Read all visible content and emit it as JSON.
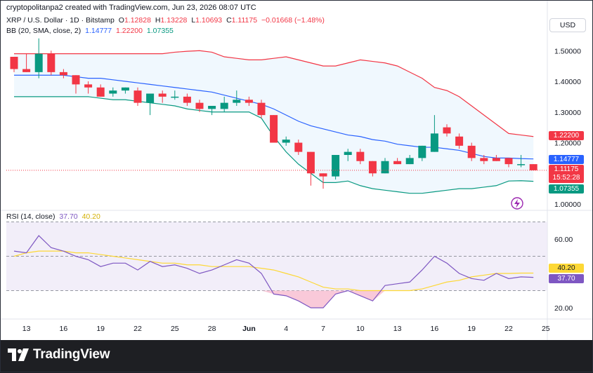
{
  "header": {
    "text": "cryptopolitanpa2 created with TradingView.com, Jun 23, 2026 08:07 UTC"
  },
  "symbol": {
    "title": "XRP / U.S. Dollar · 1D · Bitstamp",
    "open_label": "O",
    "open": "1.12828",
    "high_label": "H",
    "high": "1.13228",
    "low_label": "L",
    "low": "1.10693",
    "close_label": "C",
    "close": "1.11175",
    "change": "−0.01668 (−1.48%)"
  },
  "bb": {
    "label": "BB (20, SMA, close, 2)",
    "basis": "1.14777",
    "upper": "1.22200",
    "lower": "1.07355"
  },
  "rsi": {
    "label": "RSI (14, close)",
    "rsi_value": "37.70",
    "ma_value": "40.20"
  },
  "currency_button": "USD",
  "price_tags": {
    "upper": "1.22200",
    "basis": "1.14777",
    "last": "1.11175",
    "countdown": "15:52:28",
    "lower": "1.07355"
  },
  "colors": {
    "up": "#089981",
    "down": "#f23645",
    "bb_upper": "#f23645",
    "bb_basis": "#2962ff",
    "bb_lower": "#089981",
    "rsi": "#7e57c2",
    "rsi_ma": "#fdd835",
    "band_fill": "#e3f2fd",
    "rsi_fill": "#ede7f6"
  },
  "brand": {
    "name": "TradingView"
  },
  "chart_data": {
    "type": "candlestick",
    "y_ticks": [
      "1.50000",
      "1.40000",
      "1.30000",
      "1.20000",
      "1.00000"
    ],
    "x_ticks": [
      {
        "label": "13",
        "idx": 1
      },
      {
        "label": "16",
        "idx": 4
      },
      {
        "label": "19",
        "idx": 7
      },
      {
        "label": "22",
        "idx": 10
      },
      {
        "label": "25",
        "idx": 13
      },
      {
        "label": "28",
        "idx": 16
      },
      {
        "label": "Jun",
        "idx": 19
      },
      {
        "label": "4",
        "idx": 22
      },
      {
        "label": "7",
        "idx": 25
      },
      {
        "label": "10",
        "idx": 28
      },
      {
        "label": "13",
        "idx": 31
      },
      {
        "label": "16",
        "idx": 34
      },
      {
        "label": "19",
        "idx": 37
      },
      {
        "label": "22",
        "idx": 40
      },
      {
        "label": "25",
        "idx": 43
      }
    ],
    "candles": [
      [
        1.48,
        1.48,
        1.43,
        1.44
      ],
      [
        1.44,
        1.49,
        1.43,
        1.43
      ],
      [
        1.43,
        1.54,
        1.41,
        1.49
      ],
      [
        1.49,
        1.5,
        1.42,
        1.43
      ],
      [
        1.43,
        1.44,
        1.41,
        1.42
      ],
      [
        1.42,
        1.42,
        1.36,
        1.39
      ],
      [
        1.39,
        1.4,
        1.36,
        1.38
      ],
      [
        1.38,
        1.39,
        1.35,
        1.35
      ],
      [
        1.36,
        1.38,
        1.35,
        1.37
      ],
      [
        1.37,
        1.38,
        1.36,
        1.38
      ],
      [
        1.37,
        1.38,
        1.32,
        1.33
      ],
      [
        1.33,
        1.36,
        1.29,
        1.36
      ],
      [
        1.36,
        1.37,
        1.33,
        1.35
      ],
      [
        1.35,
        1.37,
        1.34,
        1.35
      ],
      [
        1.35,
        1.36,
        1.32,
        1.33
      ],
      [
        1.33,
        1.34,
        1.3,
        1.31
      ],
      [
        1.31,
        1.32,
        1.29,
        1.32
      ],
      [
        1.31,
        1.35,
        1.3,
        1.33
      ],
      [
        1.33,
        1.37,
        1.32,
        1.34
      ],
      [
        1.34,
        1.35,
        1.32,
        1.33
      ],
      [
        1.33,
        1.34,
        1.28,
        1.29
      ],
      [
        1.29,
        1.29,
        1.2,
        1.2
      ],
      [
        1.2,
        1.22,
        1.19,
        1.21
      ],
      [
        1.2,
        1.21,
        1.16,
        1.17
      ],
      [
        1.17,
        1.17,
        1.06,
        1.1
      ],
      [
        1.1,
        1.1,
        1.05,
        1.09
      ],
      [
        1.09,
        1.16,
        1.08,
        1.16
      ],
      [
        1.16,
        1.18,
        1.14,
        1.17
      ],
      [
        1.17,
        1.18,
        1.13,
        1.14
      ],
      [
        1.14,
        1.14,
        1.09,
        1.1
      ],
      [
        1.1,
        1.15,
        1.1,
        1.14
      ],
      [
        1.14,
        1.15,
        1.13,
        1.13
      ],
      [
        1.13,
        1.16,
        1.13,
        1.15
      ],
      [
        1.15,
        1.19,
        1.14,
        1.19
      ],
      [
        1.17,
        1.29,
        1.17,
        1.23
      ],
      [
        1.25,
        1.26,
        1.22,
        1.23
      ],
      [
        1.22,
        1.23,
        1.18,
        1.19
      ],
      [
        1.19,
        1.2,
        1.14,
        1.15
      ],
      [
        1.15,
        1.16,
        1.13,
        1.14
      ],
      [
        1.15,
        1.16,
        1.14,
        1.14
      ],
      [
        1.15,
        1.15,
        1.12,
        1.13
      ],
      [
        1.13,
        1.16,
        1.12,
        1.13
      ],
      [
        1.13,
        1.13,
        1.11,
        1.11
      ]
    ],
    "bb_upper": [
      1.49,
      1.49,
      1.49,
      1.49,
      1.49,
      1.49,
      1.49,
      1.49,
      1.49,
      1.49,
      1.49,
      1.49,
      1.49,
      1.495,
      1.498,
      1.5,
      1.495,
      1.48,
      1.475,
      1.47,
      1.47,
      1.475,
      1.48,
      1.47,
      1.46,
      1.45,
      1.45,
      1.46,
      1.47,
      1.465,
      1.46,
      1.45,
      1.43,
      1.41,
      1.38,
      1.37,
      1.35,
      1.32,
      1.29,
      1.26,
      1.23,
      1.225,
      1.22
    ],
    "bb_basis": [
      1.42,
      1.42,
      1.42,
      1.42,
      1.42,
      1.415,
      1.41,
      1.41,
      1.405,
      1.4,
      1.395,
      1.39,
      1.385,
      1.38,
      1.375,
      1.37,
      1.365,
      1.355,
      1.345,
      1.335,
      1.325,
      1.31,
      1.29,
      1.27,
      1.255,
      1.245,
      1.235,
      1.225,
      1.22,
      1.21,
      1.205,
      1.195,
      1.19,
      1.185,
      1.185,
      1.18,
      1.175,
      1.165,
      1.155,
      1.15,
      1.15,
      1.148,
      1.147
    ],
    "bb_lower": [
      1.35,
      1.35,
      1.35,
      1.35,
      1.35,
      1.35,
      1.35,
      1.345,
      1.34,
      1.34,
      1.335,
      1.33,
      1.325,
      1.32,
      1.31,
      1.305,
      1.3,
      1.3,
      1.3,
      1.3,
      1.28,
      1.22,
      1.17,
      1.13,
      1.1,
      1.07,
      1.07,
      1.075,
      1.06,
      1.05,
      1.045,
      1.04,
      1.035,
      1.035,
      1.04,
      1.045,
      1.05,
      1.05,
      1.055,
      1.06,
      1.075,
      1.076,
      1.074
    ],
    "rsi": [
      53,
      52,
      62,
      55,
      53,
      50,
      48,
      44,
      46,
      46,
      42,
      47,
      44,
      45,
      43,
      40,
      42,
      45,
      48,
      46,
      40,
      28,
      27,
      24,
      20,
      20,
      28,
      30,
      27,
      24,
      33,
      34,
      35,
      42,
      50,
      46,
      40,
      37,
      36,
      40,
      37,
      38,
      37.7
    ],
    "rsi_ma": [
      50,
      52,
      53,
      53,
      53,
      52,
      52,
      51,
      50,
      49,
      48,
      47,
      46,
      46,
      45,
      45,
      44,
      44,
      44,
      44,
      43,
      42,
      40,
      38,
      35,
      32,
      31,
      31,
      30,
      30,
      30,
      30,
      30,
      31,
      33,
      35,
      36,
      38,
      39,
      40,
      40,
      40.2,
      40.2
    ],
    "rsi_ticks": [
      "60.00",
      "20.00"
    ]
  }
}
